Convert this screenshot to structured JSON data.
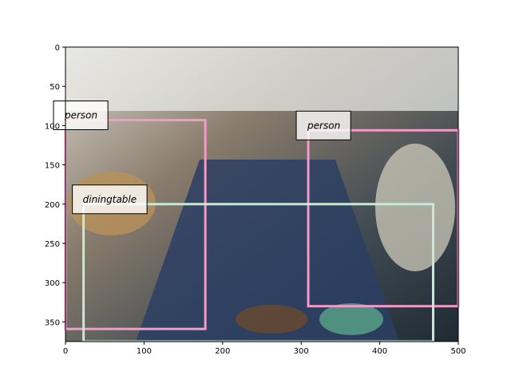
{
  "chart_data": {
    "type": "detection",
    "xlim": [
      0,
      500
    ],
    "ylim": [
      375,
      0
    ],
    "xticks": [
      0,
      100,
      200,
      300,
      400,
      500
    ],
    "yticks": [
      0,
      50,
      100,
      150,
      200,
      250,
      300,
      350
    ],
    "detections": [
      {
        "label": "person",
        "color": "#f29ac8",
        "x0": 0,
        "y0": 93,
        "x1": 178,
        "y1": 359
      },
      {
        "label": "person",
        "color": "#f29ac8",
        "x0": 309,
        "y0": 106,
        "x1": 500,
        "y1": 330
      },
      {
        "label": "diningtable",
        "color": "#c9e8d6",
        "x0": 23,
        "y0": 200,
        "x1": 468,
        "y1": 375
      }
    ]
  }
}
